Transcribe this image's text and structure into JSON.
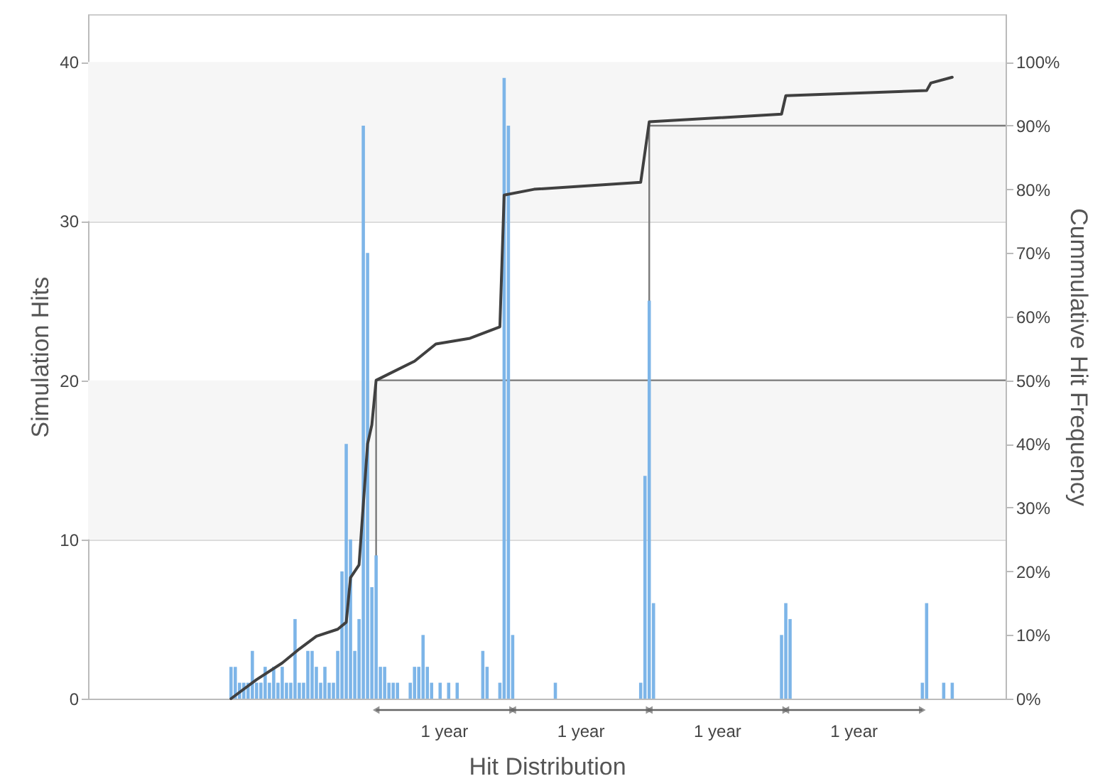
{
  "chart_data": {
    "type": "bar",
    "xlabel": "Hit Distribution",
    "ylabel": "Simulation Hits",
    "y2label": "Cummulative Hit Frequency",
    "categories": [
      null,
      null,
      null,
      null,
      null,
      null,
      null,
      null,
      null,
      null,
      null,
      null,
      null,
      null,
      null,
      null,
      null,
      null,
      null,
      null,
      null,
      null,
      null,
      null,
      null,
      null,
      null,
      null,
      null,
      null,
      null,
      null,
      null,
      null,
      null,
      null,
      null,
      null,
      null,
      null,
      null,
      null,
      null,
      null,
      null,
      null,
      null,
      null,
      null,
      null,
      null,
      null,
      null,
      null,
      null,
      null,
      null,
      null,
      null,
      null,
      null,
      null,
      null,
      null,
      null,
      null,
      null,
      null,
      null,
      null,
      null,
      null,
      null,
      null,
      null,
      null,
      null,
      null,
      null,
      null,
      null,
      null,
      null,
      null,
      null,
      null,
      null,
      null,
      null,
      null,
      null,
      null,
      null,
      null,
      null,
      null,
      null,
      null,
      null,
      null,
      null,
      null,
      null,
      null,
      null,
      null,
      null,
      null,
      null,
      null,
      null,
      null,
      null,
      null,
      null,
      null,
      null,
      null,
      null,
      null,
      null,
      null,
      null,
      null,
      null,
      null,
      null,
      null,
      null,
      null,
      null,
      null,
      null,
      null,
      null,
      null,
      null,
      null,
      null,
      null,
      null,
      null,
      null,
      null,
      null,
      null,
      null,
      null,
      null,
      null,
      null,
      null,
      null,
      null,
      null,
      null,
      null,
      null,
      null,
      null,
      null,
      null,
      null,
      null,
      null,
      null,
      null,
      null,
      null,
      null,
      null,
      null,
      null,
      null,
      null,
      null,
      null,
      null,
      null,
      null,
      null,
      null,
      null,
      null,
      null,
      null,
      null,
      null,
      null,
      null,
      null,
      null,
      null,
      null,
      null,
      null,
      null,
      null,
      null,
      null,
      null,
      null,
      null,
      null,
      null,
      null,
      null,
      null,
      null,
      null,
      null,
      null,
      null,
      null,
      null
    ],
    "series": [
      {
        "color": "#7db5e8",
        "values": [
          0,
          0,
          0,
          0,
          0,
          0,
          0,
          0,
          0,
          0,
          0,
          0,
          0,
          0,
          0,
          0,
          0,
          0,
          0,
          0,
          0,
          0,
          0,
          0,
          0,
          0,
          0,
          0,
          0,
          0,
          0,
          0,
          0,
          2,
          2,
          1,
          1,
          1,
          3,
          1,
          1,
          2,
          1,
          2,
          1,
          2,
          1,
          1,
          5,
          1,
          1,
          3,
          3,
          2,
          1,
          2,
          1,
          1,
          3,
          8,
          16,
          10,
          3,
          5,
          36,
          28,
          7,
          9,
          2,
          2,
          1,
          1,
          1,
          0,
          0,
          1,
          2,
          2,
          4,
          2,
          1,
          0,
          1,
          0,
          1,
          0,
          1,
          0,
          0,
          0,
          0,
          0,
          3,
          2,
          0,
          0,
          1,
          39,
          36,
          4,
          0,
          0,
          0,
          0,
          0,
          0,
          0,
          0,
          0,
          1,
          0,
          0,
          0,
          0,
          0,
          0,
          0,
          0,
          0,
          0,
          0,
          0,
          0,
          0,
          0,
          0,
          0,
          0,
          0,
          1,
          14,
          25,
          6,
          0,
          0,
          0,
          0,
          0,
          0,
          0,
          0,
          0,
          0,
          0,
          0,
          0,
          0,
          0,
          0,
          0,
          0,
          0,
          0,
          0,
          0,
          0,
          0,
          0,
          0,
          0,
          0,
          0,
          4,
          6,
          5,
          0,
          0,
          0,
          0,
          0,
          0,
          0,
          0,
          0,
          0,
          0,
          0,
          0,
          0,
          0,
          0,
          0,
          0,
          0,
          0,
          0,
          0,
          0,
          0,
          0,
          0,
          0,
          0,
          0,
          0,
          1,
          6,
          0,
          0,
          0,
          1,
          0,
          1,
          0,
          0,
          0,
          0,
          0,
          0,
          0,
          0,
          0,
          0,
          0,
          0
        ]
      },
      {
        "type": "line",
        "axis": "y2",
        "color": "#404040",
        "values": [
          null,
          null,
          null,
          null,
          null,
          null,
          null,
          null,
          null,
          null,
          null,
          null,
          null,
          null,
          null,
          null,
          null,
          null,
          null,
          null,
          null,
          null,
          null,
          null,
          null,
          null,
          null,
          null,
          null,
          null,
          null,
          null,
          null,
          0,
          null,
          null,
          null,
          null,
          null,
          3,
          null,
          null,
          null,
          null,
          null,
          5.6,
          null,
          null,
          null,
          7.8,
          null,
          null,
          null,
          9.8,
          null,
          null,
          null,
          null,
          10.9,
          null,
          12,
          19,
          null,
          21,
          null,
          40,
          43,
          50,
          null,
          null,
          51,
          null,
          null,
          null,
          null,
          null,
          53,
          null,
          null,
          null,
          null,
          55.7,
          null,
          null,
          null,
          null,
          null,
          null,
          null,
          56.6,
          null,
          null,
          null,
          null,
          null,
          null,
          58.4,
          79.1,
          null,
          null,
          null,
          null,
          null,
          null,
          80,
          null,
          null,
          null,
          null,
          null,
          null,
          null,
          null,
          null,
          null,
          null,
          null,
          null,
          null,
          null,
          null,
          null,
          null,
          null,
          null,
          null,
          null,
          null,
          null,
          81.1,
          null,
          90.6,
          null,
          null,
          null,
          null,
          null,
          null,
          null,
          null,
          null,
          null,
          null,
          null,
          null,
          null,
          null,
          null,
          null,
          null,
          null,
          null,
          null,
          null,
          null,
          null,
          null,
          null,
          null,
          null,
          null,
          null,
          91.8,
          94.7,
          null,
          null,
          null,
          null,
          null,
          null,
          null,
          null,
          null,
          null,
          null,
          null,
          null,
          null,
          null,
          null,
          null,
          null,
          null,
          null,
          null,
          null,
          null,
          null,
          null,
          null,
          null,
          null,
          null,
          null,
          null,
          null,
          95.5,
          96.7,
          null,
          null,
          null,
          null,
          97.6,
          null,
          null,
          null,
          null,
          null,
          null,
          null,
          null,
          null,
          null,
          null,
          null
        ]
      }
    ],
    "ylim": [
      0,
      43
    ],
    "yticks": [
      0,
      10,
      20,
      30,
      40
    ],
    "y2lim": [
      0,
      107.5
    ],
    "y2ticks": [
      {
        "value": 0,
        "label": "0%"
      },
      {
        "value": 10,
        "label": "10%"
      },
      {
        "value": 20,
        "label": "20%"
      },
      {
        "value": 30,
        "label": "30%"
      },
      {
        "value": 40,
        "label": "40%"
      },
      {
        "value": 50,
        "label": "50%"
      },
      {
        "value": 60,
        "label": "60%"
      },
      {
        "value": 70,
        "label": "70%"
      },
      {
        "value": 80,
        "label": "80%"
      },
      {
        "value": 90,
        "label": "90%"
      },
      {
        "value": 100,
        "label": "100%"
      }
    ],
    "grid": "y",
    "bands": [
      {
        "axis": "y",
        "from": 10,
        "to": 20,
        "color": "#f6f6f6"
      },
      {
        "axis": "y",
        "from": 30,
        "to": 40,
        "color": "#f6f6f6"
      }
    ],
    "ref_lines": [
      {
        "axis": "y2",
        "value": 50,
        "color": "#7a7a7a"
      },
      {
        "axis": "y2",
        "value": 90,
        "color": "#7a7a7a"
      }
    ],
    "annotations": [
      "1 year",
      "1 year",
      "1 year",
      "1 year"
    ]
  }
}
